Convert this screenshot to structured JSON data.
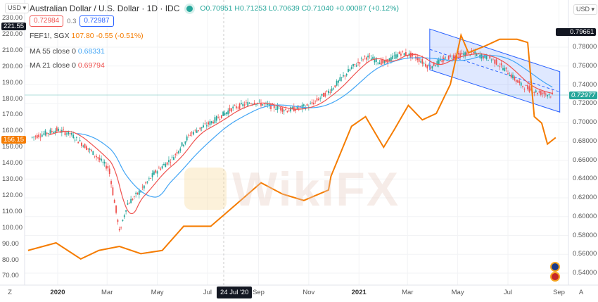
{
  "header": {
    "title": "Australian Dollar / U.S. Dollar · 1D · IDC",
    "ohlc": "O0.70951 H0.71253 L0.70639 C0.71040 +0.00087 (+0.12%)",
    "sell_price": "0.72984",
    "spread": "0.3",
    "buy_price": "0.72987"
  },
  "legend": [
    {
      "name": "FEF1!, SGX",
      "value": "107.80 -0.55 (-0.51%)",
      "color": "#f57c00"
    },
    {
      "name": "MA 55 close 0",
      "value": "0.68331",
      "color": "#42a5f5"
    },
    {
      "name": "MA 21 close 0",
      "value": "0.69794",
      "color": "#ef5350"
    }
  ],
  "currency_left": "USD",
  "currency_right": "USD",
  "axis_buttons": {
    "left": "Z",
    "right": "A"
  },
  "watermark": "WikiFX",
  "crosshair_date": "24 Jul '20",
  "chart_data": {
    "type": "line",
    "x_ticks": [
      "2020",
      "Mar",
      "May",
      "Jul",
      "Sep",
      "Nov",
      "2021",
      "Mar",
      "May",
      "Jul",
      "Sep"
    ],
    "x_tick_dates": [
      "2020-01-01",
      "2020-03-01",
      "2020-05-01",
      "2020-07-01",
      "2020-09-01",
      "2020-11-01",
      "2021-01-01",
      "2021-03-01",
      "2021-05-01",
      "2021-07-01",
      "2021-09-01"
    ],
    "left_axis": {
      "ticks": [
        "230.00",
        "220.00",
        "210.00",
        "200.00",
        "190.00",
        "180.00",
        "170.00",
        "160.00",
        "150.00",
        "140.00",
        "130.00",
        "120.00",
        "110.00",
        "100.00",
        "90.00",
        "80.00",
        "70.00"
      ],
      "range": [
        70,
        230
      ]
    },
    "right_axis": {
      "ticks": [
        "0.78000",
        "0.76000",
        "0.74000",
        "0.72000",
        "0.70000",
        "0.68000",
        "0.66000",
        "0.64000",
        "0.62000",
        "0.60000",
        "0.58000",
        "0.56000",
        "0.54000"
      ],
      "range": [
        0.54,
        0.78
      ]
    },
    "price_labels": {
      "left_high": "221.55",
      "left_last": "156.15",
      "right_high": "0.79661",
      "right_last": "0.72977"
    },
    "series": [
      {
        "name": "Australian Dollar / U.S. Dollar",
        "axis": "right",
        "color": "#26a69a",
        "points": [
          [
            "2019-11-30",
            0.684
          ],
          [
            "2019-12-30",
            0.692
          ],
          [
            "2020-01-16",
            0.688
          ],
          [
            "2020-02-11",
            0.669
          ],
          [
            "2020-03-03",
            0.651
          ],
          [
            "2020-03-16",
            0.583
          ],
          [
            "2020-03-25",
            0.613
          ],
          [
            "2020-04-11",
            0.628
          ],
          [
            "2020-04-28",
            0.647
          ],
          [
            "2020-05-19",
            0.662
          ],
          [
            "2020-06-10",
            0.688
          ],
          [
            "2020-07-05",
            0.7
          ],
          [
            "2020-07-31",
            0.715
          ],
          [
            "2020-08-26",
            0.722
          ],
          [
            "2020-09-12",
            0.718
          ],
          [
            "2020-10-07",
            0.713
          ],
          [
            "2020-11-02",
            0.718
          ],
          [
            "2020-11-28",
            0.735
          ],
          [
            "2020-12-23",
            0.758
          ],
          [
            "2021-01-09",
            0.77
          ],
          [
            "2021-01-31",
            0.763
          ],
          [
            "2021-02-21",
            0.774
          ],
          [
            "2021-03-10",
            0.77
          ],
          [
            "2021-03-27",
            0.759
          ],
          [
            "2021-04-22",
            0.77
          ],
          [
            "2021-05-18",
            0.774
          ],
          [
            "2021-06-12",
            0.767
          ],
          [
            "2021-06-29",
            0.755
          ],
          [
            "2021-07-16",
            0.74
          ],
          [
            "2021-08-02",
            0.733
          ],
          [
            "2021-08-24",
            0.729
          ]
        ]
      },
      {
        "name": "FEF1!, SGX",
        "axis": "left",
        "color": "#f57c00",
        "points": [
          [
            "2019-11-26",
            86
          ],
          [
            "2019-12-30",
            90.7
          ],
          [
            "2020-01-29",
            80.7
          ],
          [
            "2020-02-20",
            86
          ],
          [
            "2020-03-16",
            88.5
          ],
          [
            "2020-04-11",
            84
          ],
          [
            "2020-05-07",
            86
          ],
          [
            "2020-06-02",
            101
          ],
          [
            "2020-07-05",
            101
          ],
          [
            "2020-07-31",
            112.5
          ],
          [
            "2020-09-04",
            128
          ],
          [
            "2020-09-30",
            121
          ],
          [
            "2020-10-26",
            117
          ],
          [
            "2020-11-25",
            123.5
          ],
          [
            "2020-11-28",
            132
          ],
          [
            "2020-12-23",
            163
          ],
          [
            "2021-01-09",
            169
          ],
          [
            "2021-01-31",
            150
          ],
          [
            "2021-02-13",
            161
          ],
          [
            "2021-03-02",
            176
          ],
          [
            "2021-03-19",
            167
          ],
          [
            "2021-04-05",
            171
          ],
          [
            "2021-04-22",
            189
          ],
          [
            "2021-05-05",
            219.5
          ],
          [
            "2021-05-14",
            208.6
          ],
          [
            "2021-06-04",
            213
          ],
          [
            "2021-06-21",
            217
          ],
          [
            "2021-07-12",
            217
          ],
          [
            "2021-07-25",
            215
          ],
          [
            "2021-08-02",
            169
          ],
          [
            "2021-08-11",
            165
          ],
          [
            "2021-08-18",
            152
          ],
          [
            "2021-08-28",
            156
          ]
        ]
      }
    ],
    "moving_averages": [
      {
        "name": "MA 55 close 0",
        "period": 55,
        "color": "#42a5f5"
      },
      {
        "name": "MA 21 close 0",
        "period": 21,
        "color": "#ef5350"
      }
    ],
    "channel": {
      "start": "2021-03-28",
      "end": "2021-09-02",
      "upper": [
        0.7993,
        0.754
      ],
      "lower": [
        0.756,
        0.711
      ],
      "color": "#2962ff"
    }
  }
}
